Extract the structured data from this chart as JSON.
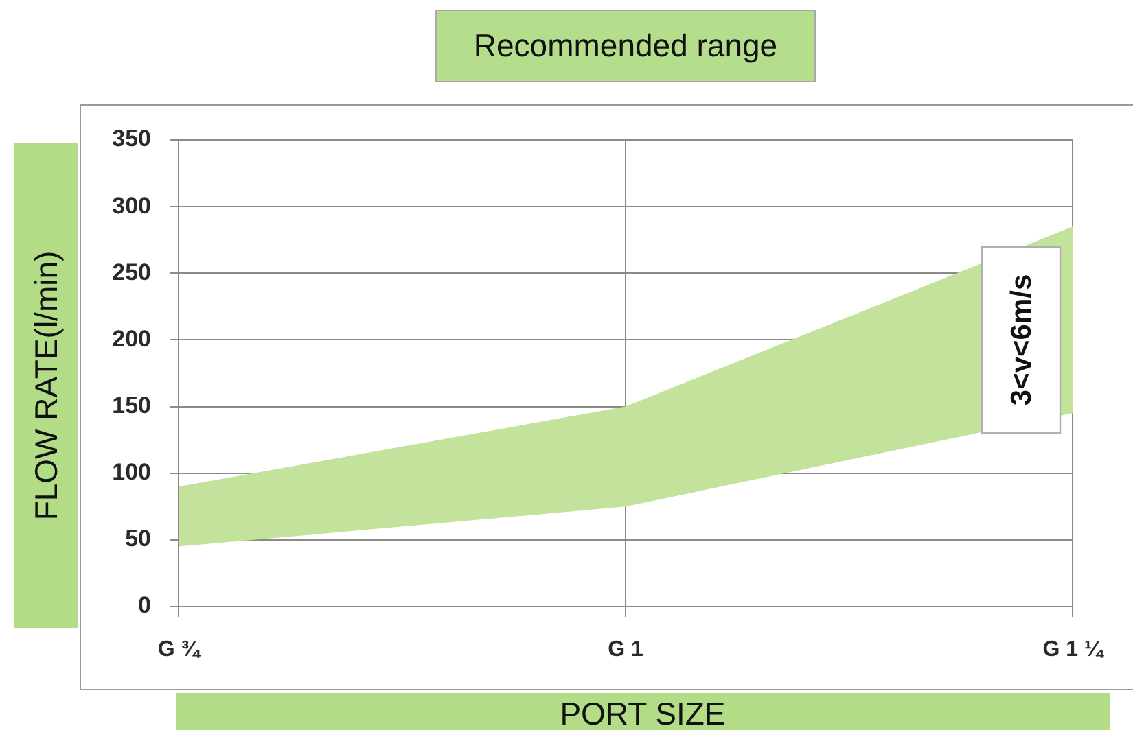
{
  "chart_data": {
    "type": "area",
    "title": "Recommended range",
    "xlabel": "PORT SIZE",
    "ylabel": "FLOW RATE(l/min)",
    "categories": [
      "G ¾",
      "G 1",
      "G 1 ¼"
    ],
    "series": [
      {
        "color": "#c3e29b",
        "values": [
          null,
          null,
          null
        ],
        "lower": [
          45,
          75,
          145
        ],
        "upper": [
          90,
          150,
          285
        ]
      }
    ],
    "ylim": [
      0,
      350
    ],
    "yticks": [
      0,
      50,
      100,
      150,
      200,
      250,
      300,
      350
    ],
    "grid": true,
    "annotations": [
      {
        "text": "3<v<6m/s",
        "x": "G 1 ¼",
        "y": 200
      }
    ]
  }
}
